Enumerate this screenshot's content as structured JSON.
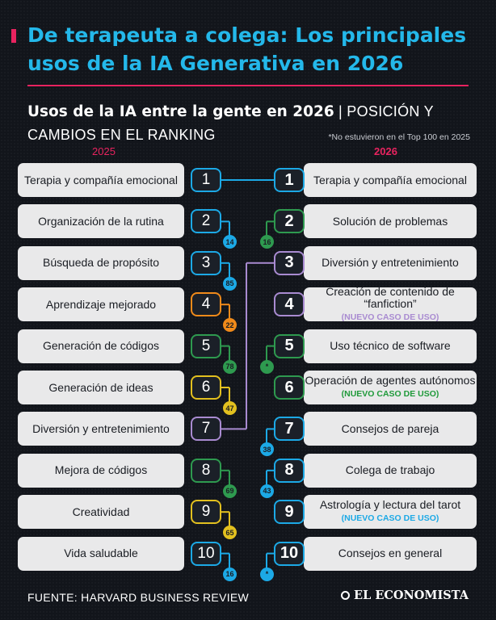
{
  "header": {
    "title": "De terapeuta a colega: Los principales usos de la IA Generativa en 2026",
    "subtitle_bold": "Usos de la IA entre la gente en 2026",
    "subtitle_sep": " | ",
    "subtitle_light": "POSICIÓN Y CAMBIOS EN EL RANKING",
    "note": "*No estuvieron en el Top 100 en 2025",
    "year_left": "2025",
    "year_right": "2026"
  },
  "colors": {
    "title": "#24b8ea",
    "accent": "#e8235f",
    "blue": "#1ca9e6",
    "green": "#2e9a4f",
    "orange": "#f08a1a",
    "yellow": "#e2c01f",
    "purple": "#a98bd1",
    "light_green": "#6cb04a",
    "olive": "#b9b21e"
  },
  "chart_data": {
    "type": "table",
    "title": "Usos de la IA entre la gente en 2026",
    "left_2025": [
      {
        "rank": "1",
        "label": "Terapia y compañía emocional",
        "color": "#1ca9e6",
        "rank_2026": "1"
      },
      {
        "rank": "2",
        "label": "Organización de la rutina",
        "color": "#1ca9e6",
        "rank_2026": "14"
      },
      {
        "rank": "3",
        "label": "Búsqueda de propósito",
        "color": "#1ca9e6",
        "rank_2026": "85"
      },
      {
        "rank": "4",
        "label": "Aprendizaje mejorado",
        "color": "#f08a1a",
        "rank_2026": "22"
      },
      {
        "rank": "5",
        "label": "Generación de códigos",
        "color": "#2e9a4f",
        "rank_2026": "78"
      },
      {
        "rank": "6",
        "label": "Generación de ideas",
        "color": "#e2c01f",
        "rank_2026": "47"
      },
      {
        "rank": "7",
        "label": "Diversión y entretenimiento",
        "color": "#a98bd1",
        "rank_2026": "3"
      },
      {
        "rank": "8",
        "label": "Mejora de códigos",
        "color": "#2e9a4f",
        "rank_2026": "69"
      },
      {
        "rank": "9",
        "label": "Creatividad",
        "color": "#e2c01f",
        "rank_2026": "65"
      },
      {
        "rank": "10",
        "label": "Vida saludable",
        "color": "#1ca9e6",
        "rank_2026": "16"
      }
    ],
    "right_2026": [
      {
        "rank": "1",
        "label": "Terapia y compañía emocional",
        "tag": "",
        "color": "#1ca9e6",
        "rank_2025": "1",
        "tag_color": ""
      },
      {
        "rank": "2",
        "label": "Solución de problemas",
        "tag": "",
        "color": "#2e9a4f",
        "rank_2025": "16",
        "tag_color": ""
      },
      {
        "rank": "3",
        "label": "Diversión y entretenimiento",
        "tag": "",
        "color": "#a98bd1",
        "rank_2025": "7",
        "tag_color": ""
      },
      {
        "rank": "4",
        "label": "Creación de contenido de “fanfiction”",
        "tag": "(NUEVO CASO DE USO)",
        "color": "#a98bd1",
        "rank_2025": "",
        "tag_color": "#a98bd1"
      },
      {
        "rank": "5",
        "label": "Uso técnico de software",
        "tag": "",
        "color": "#2e9a4f",
        "rank_2025": "*",
        "tag_color": ""
      },
      {
        "rank": "6",
        "label": "Operación de agentes autónomos",
        "tag": "(NUEVO CASO DE USO)",
        "color": "#2e9a4f",
        "rank_2025": "",
        "tag_color": "#1f9a3a"
      },
      {
        "rank": "7",
        "label": "Consejos de pareja",
        "tag": "",
        "color": "#1ca9e6",
        "rank_2025": "38",
        "tag_color": ""
      },
      {
        "rank": "8",
        "label": "Colega de trabajo",
        "tag": "",
        "color": "#1ca9e6",
        "rank_2025": "43",
        "tag_color": ""
      },
      {
        "rank": "9",
        "label": "Astrología y lectura del tarot",
        "tag": "(NUEVO CASO DE USO)",
        "color": "#1ca9e6",
        "rank_2025": "",
        "tag_color": "#1ca9e6"
      },
      {
        "rank": "10",
        "label": "Consejos en general",
        "tag": "",
        "color": "#1ca9e6",
        "rank_2025": "*",
        "tag_color": ""
      }
    ]
  },
  "footer": {
    "source": "FUENTE: HARVARD BUSINESS REVIEW",
    "logo": "EL ECONOMISTA"
  }
}
